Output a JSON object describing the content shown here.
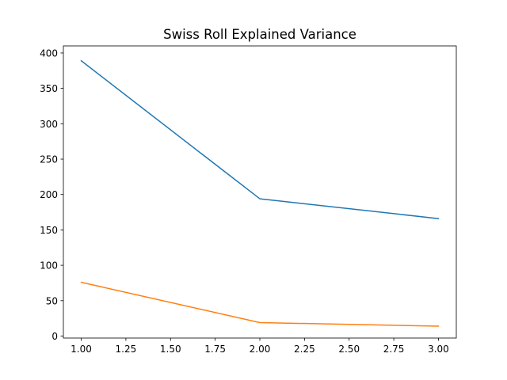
{
  "chart_data": {
    "type": "line",
    "title": "Swiss Roll Explained Variance",
    "xlabel": "",
    "ylabel": "",
    "xlim": [
      0.9,
      3.1
    ],
    "ylim": [
      -2.8,
      410
    ],
    "x_ticks": [
      1.0,
      1.25,
      1.5,
      1.75,
      2.0,
      2.25,
      2.5,
      2.75,
      3.0
    ],
    "x_tick_labels": [
      "1.00",
      "1.25",
      "1.50",
      "1.75",
      "2.00",
      "2.25",
      "2.50",
      "2.75",
      "3.00"
    ],
    "y_ticks": [
      0,
      50,
      100,
      150,
      200,
      250,
      300,
      350,
      400
    ],
    "y_tick_labels": [
      "0",
      "50",
      "100",
      "150",
      "200",
      "250",
      "300",
      "350",
      "400"
    ],
    "grid": false,
    "legend": "none",
    "x": [
      1,
      2,
      3
    ],
    "series": [
      {
        "values": [
          389,
          194,
          166
        ],
        "color": "#1f77b4"
      },
      {
        "values": [
          76,
          19,
          14
        ],
        "color": "#ff7f0e"
      }
    ]
  }
}
